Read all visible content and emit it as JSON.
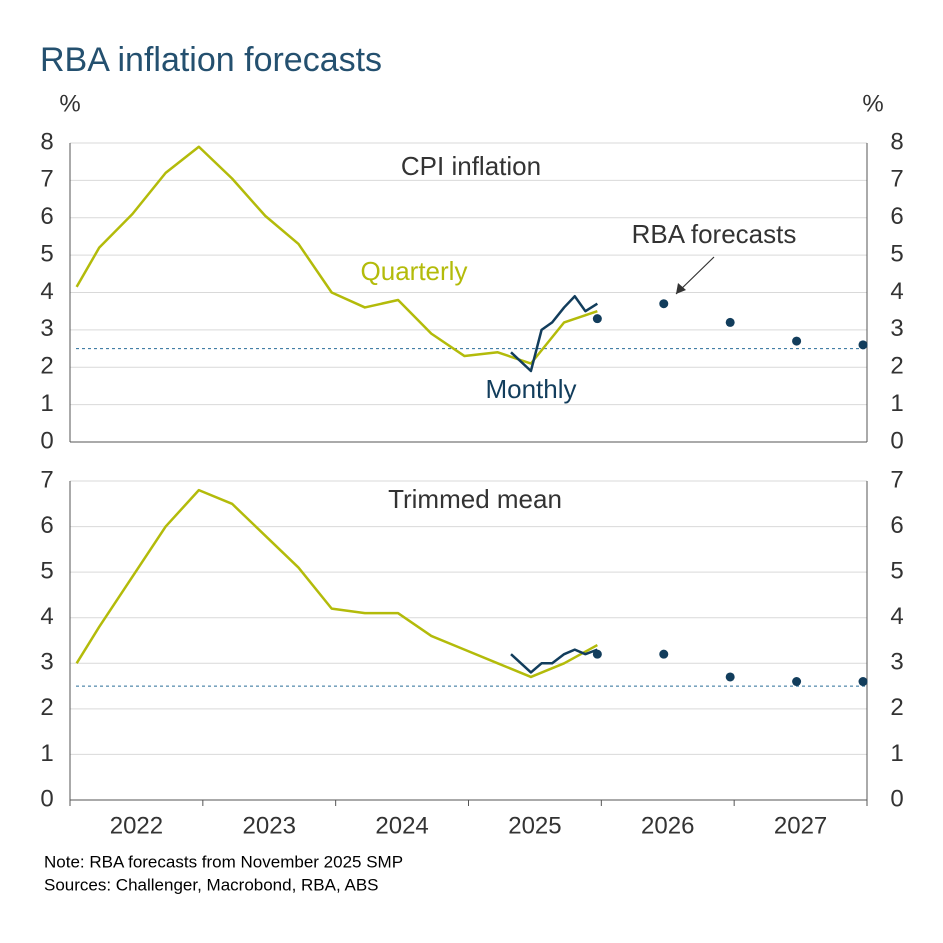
{
  "title": "RBA inflation forecasts",
  "y_unit": "%",
  "notes": [
    "Note: RBA forecasts from November 2025 SMP",
    "Sources: Challenger, Macrobond, RBA, ABS"
  ],
  "chart_data": [
    {
      "type": "line",
      "title": "CPI inflation",
      "xlim": [
        2022,
        2028
      ],
      "ylim": [
        0,
        8
      ],
      "yticks": [
        0,
        1,
        2,
        3,
        4,
        5,
        6,
        7,
        8
      ],
      "grid": true,
      "reference_line": 2.5,
      "series": [
        {
          "name": "Quarterly",
          "color": "#b3bb0a",
          "style": "line",
          "x": [
            2022.05,
            2022.22,
            2022.47,
            2022.72,
            2022.97,
            2023.22,
            2023.47,
            2023.72,
            2023.97,
            2024.22,
            2024.47,
            2024.72,
            2024.97,
            2025.22,
            2025.47,
            2025.72,
            2025.97
          ],
          "values": [
            4.15,
            5.2,
            6.1,
            7.2,
            7.9,
            7.05,
            6.05,
            5.3,
            4.0,
            3.6,
            3.8,
            2.9,
            2.3,
            2.4,
            2.1,
            3.2,
            3.5
          ]
        },
        {
          "name": "Monthly",
          "color": "#123d5c",
          "style": "line",
          "x": [
            2025.32,
            2025.47,
            2025.55,
            2025.63,
            2025.72,
            2025.8,
            2025.88,
            2025.97
          ],
          "values": [
            2.4,
            1.9,
            3.0,
            3.2,
            3.6,
            3.9,
            3.5,
            3.7
          ]
        },
        {
          "name": "RBA forecasts",
          "color": "#123d5c",
          "style": "markers",
          "x": [
            2025.97,
            2026.47,
            2026.97,
            2027.47,
            2027.97
          ],
          "values": [
            3.3,
            3.7,
            3.2,
            2.7,
            2.6
          ]
        }
      ]
    },
    {
      "type": "line",
      "title": "Trimmed mean",
      "xlim": [
        2022,
        2028
      ],
      "ylim": [
        0,
        7
      ],
      "yticks": [
        0,
        1,
        2,
        3,
        4,
        5,
        6,
        7
      ],
      "grid": true,
      "reference_line": 2.5,
      "xticks": [
        2022,
        2023,
        2024,
        2025,
        2026,
        2027,
        2028
      ],
      "x_labels": [
        "2022",
        "2023",
        "2024",
        "2025",
        "2026",
        "2027"
      ],
      "series": [
        {
          "color": "#b3bb0a",
          "style": "line",
          "x": [
            2022.05,
            2022.22,
            2022.47,
            2022.72,
            2022.97,
            2023.22,
            2023.47,
            2023.72,
            2023.97,
            2024.22,
            2024.47,
            2024.72,
            2024.97,
            2025.22,
            2025.47,
            2025.72,
            2025.97
          ],
          "values": [
            3.0,
            3.8,
            4.9,
            6.0,
            6.8,
            6.5,
            5.8,
            5.1,
            4.2,
            4.1,
            4.1,
            3.6,
            3.3,
            3.0,
            2.7,
            3.0,
            3.4
          ]
        },
        {
          "color": "#123d5c",
          "style": "line",
          "x": [
            2025.32,
            2025.47,
            2025.55,
            2025.63,
            2025.72,
            2025.8,
            2025.88,
            2025.97
          ],
          "values": [
            3.2,
            2.8,
            3.0,
            3.0,
            3.2,
            3.3,
            3.2,
            3.3
          ]
        },
        {
          "color": "#123d5c",
          "style": "markers",
          "x": [
            2025.97,
            2026.47,
            2026.97,
            2027.47,
            2027.97
          ],
          "values": [
            3.2,
            3.2,
            2.7,
            2.6,
            2.6
          ]
        }
      ]
    }
  ]
}
